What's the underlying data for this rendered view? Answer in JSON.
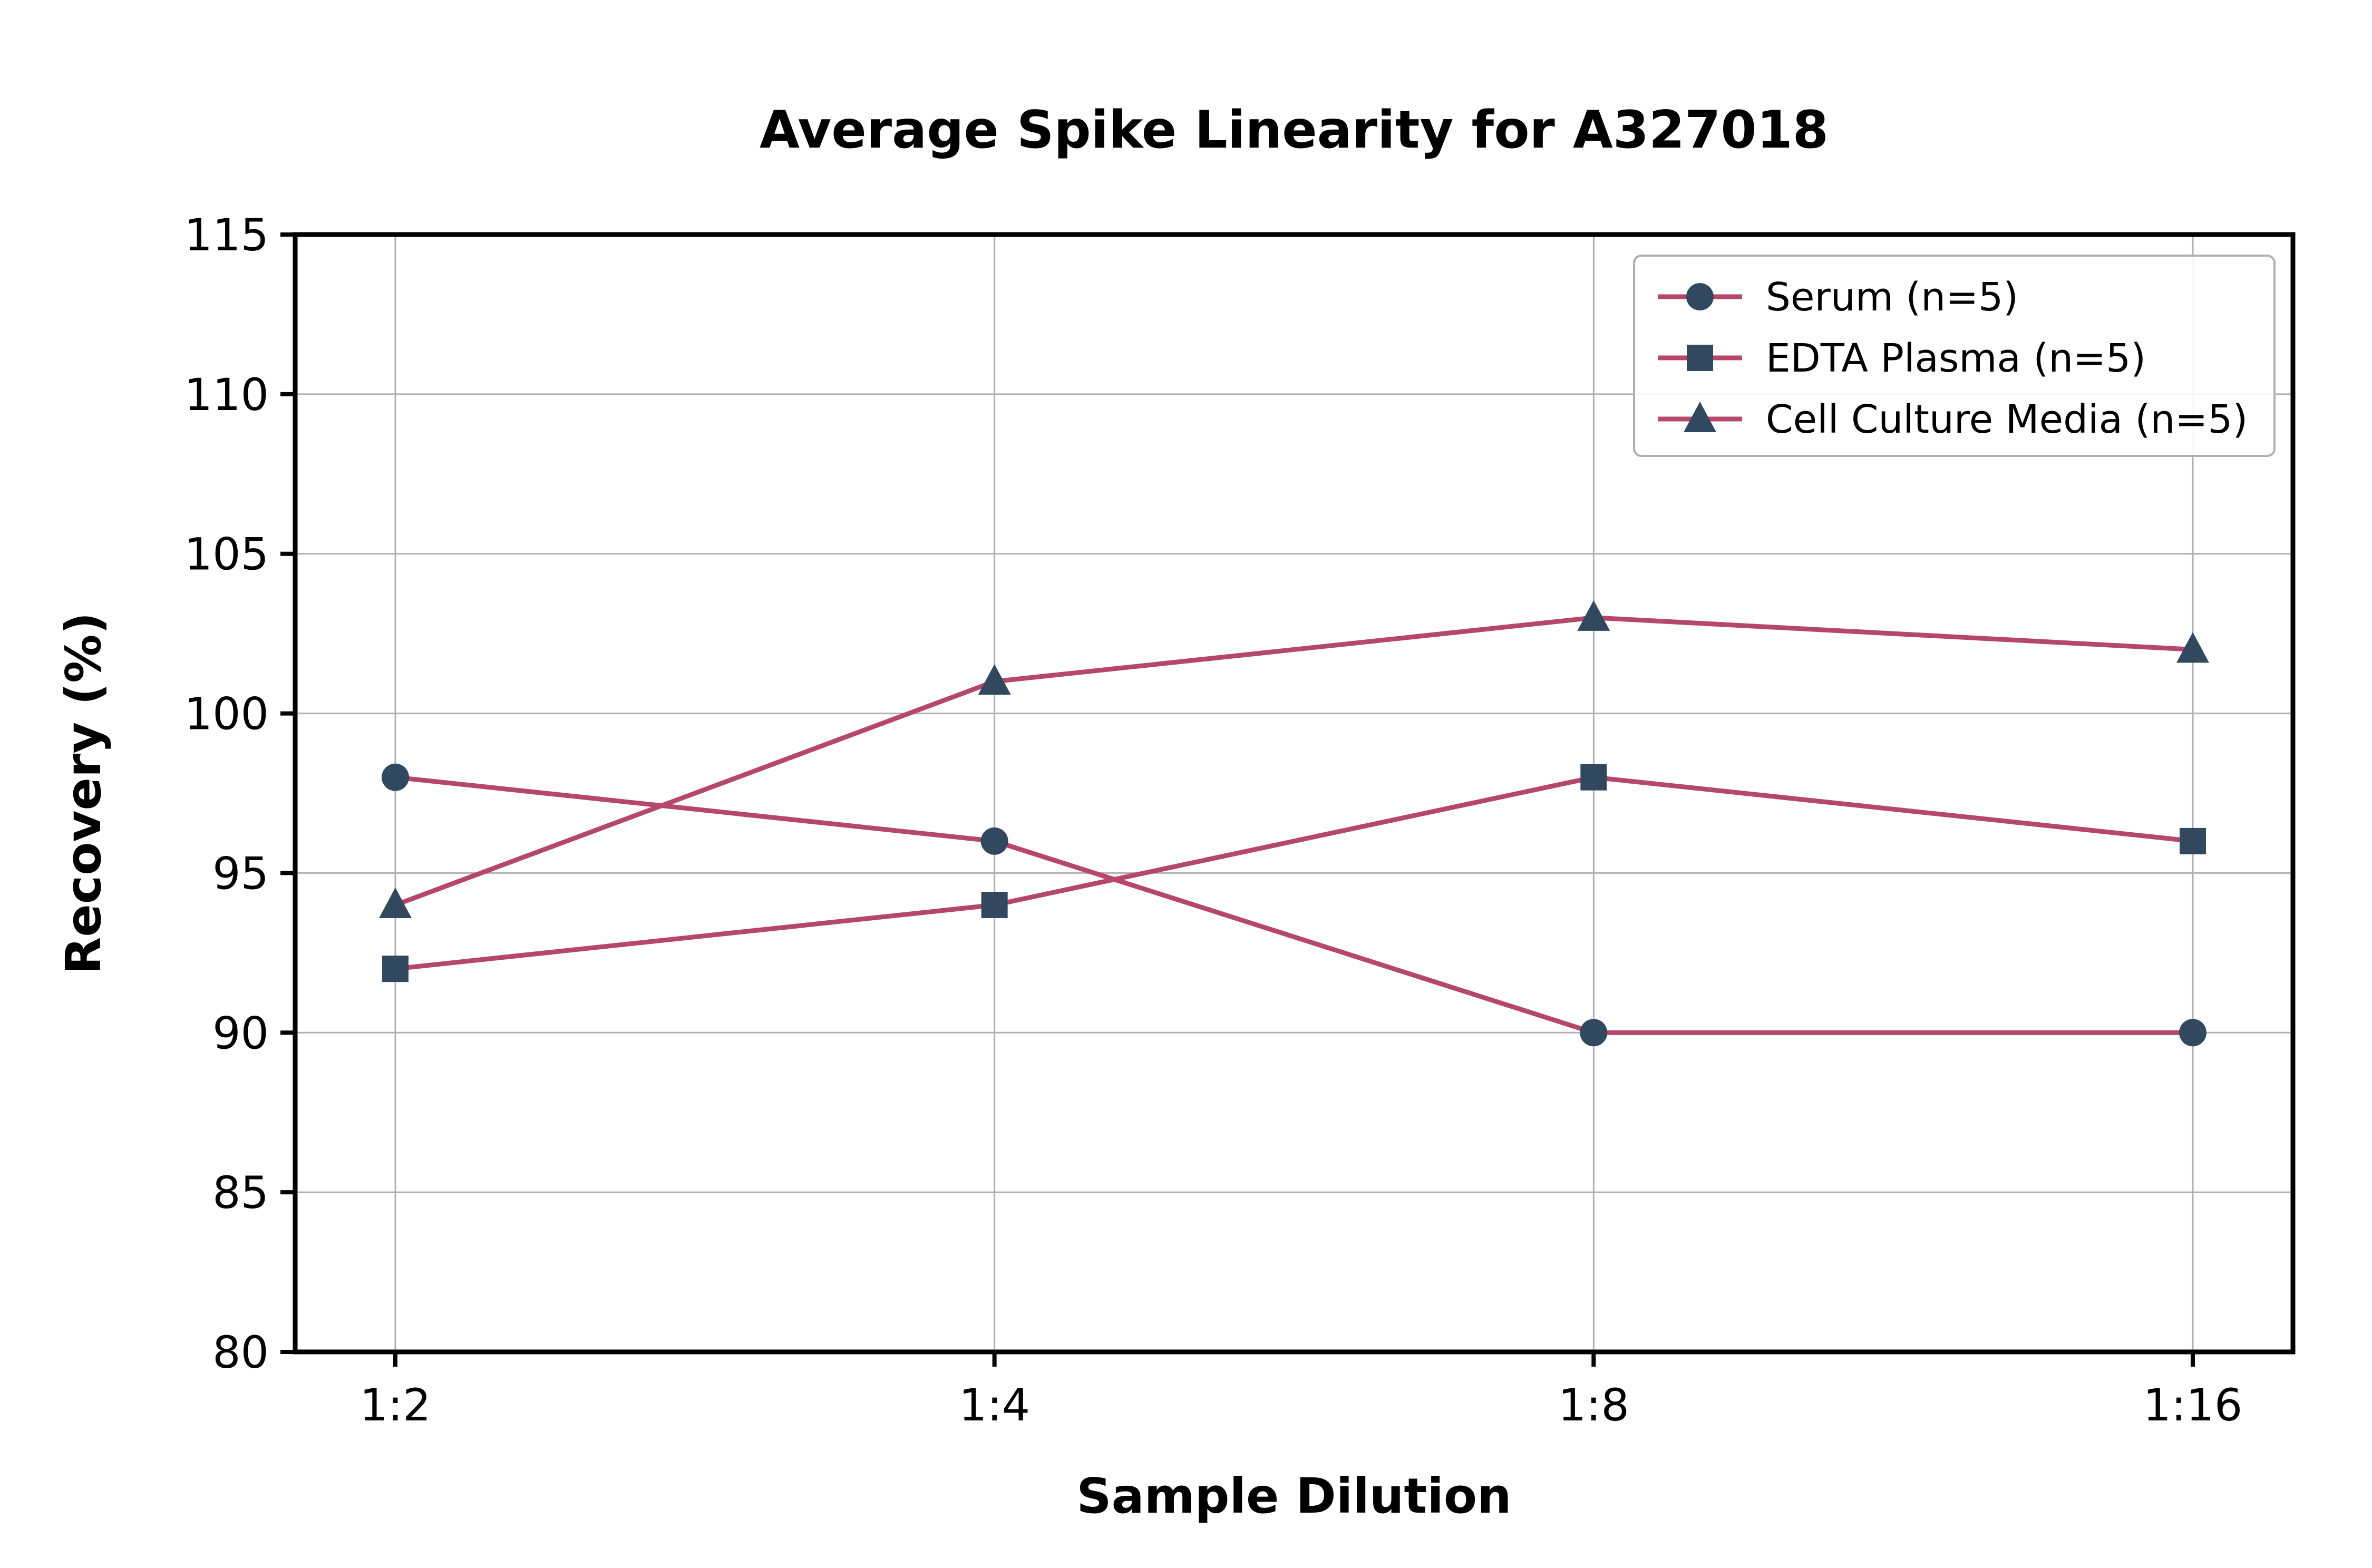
{
  "chart_data": {
    "type": "line",
    "title": "Average Spike Linearity for A327018",
    "xlabel": "Sample Dilution",
    "ylabel": "Recovery (%)",
    "categories": [
      "1:2",
      "1:4",
      "1:8",
      "1:16"
    ],
    "series": [
      {
        "name": "Serum (n=5)",
        "marker": "circle",
        "values": [
          98,
          96,
          90,
          90
        ]
      },
      {
        "name": "EDTA Plasma (n=5)",
        "marker": "square",
        "values": [
          92,
          94,
          98,
          96
        ]
      },
      {
        "name": "Cell Culture Media (n=5)",
        "marker": "triangle",
        "values": [
          94,
          101,
          103,
          102
        ]
      }
    ],
    "ylim": [
      80,
      115
    ],
    "ytick_step": 5,
    "grid": true,
    "legend_position": "upper right",
    "line_color": "#b5476b",
    "marker_color": "#31485f",
    "grid_color": "#b0b0b0",
    "spine_color": "#000000"
  }
}
